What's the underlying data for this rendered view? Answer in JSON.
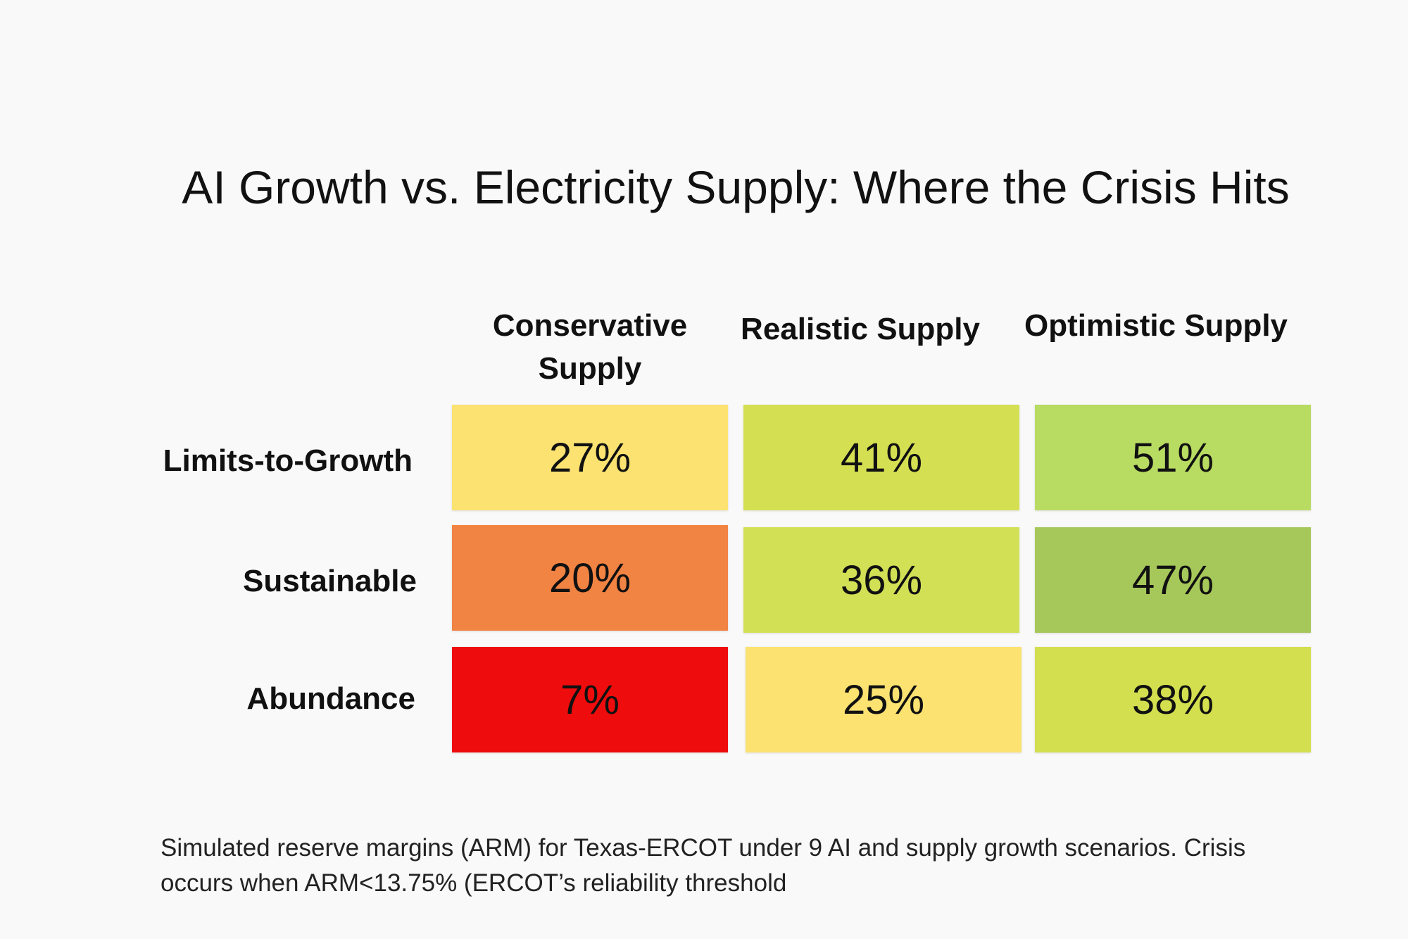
{
  "chart_data": {
    "type": "heatmap",
    "title": "AI Growth vs. Electricity Supply: Where the Crisis Hits",
    "columns": [
      "Conservative Supply",
      "Realistic Supply",
      "Optimistic Supply"
    ],
    "rows": [
      "Limits-to-Growth",
      "Sustainable",
      "Abundance"
    ],
    "values": [
      [
        27,
        41,
        51
      ],
      [
        20,
        36,
        47
      ],
      [
        7,
        25,
        38
      ]
    ],
    "labels": [
      [
        "27%",
        "41%",
        "51%"
      ],
      [
        "20%",
        "36%",
        "47%"
      ],
      [
        "7%",
        "25%",
        "38%"
      ]
    ],
    "colors": [
      [
        "#fbe271",
        "#d5df52",
        "#b8db62"
      ],
      [
        "#f18343",
        "#d2e056",
        "#a6c85a"
      ],
      [
        "#ee0c0c",
        "#fbe271",
        "#d3df4f"
      ]
    ],
    "caption_lines": [
      "Simulated reserve margins (ARM) for Texas-ERCOT under 9 AI and supply growth scenarios. Crisis",
      "occurs when ARM<13.75% (ERCOT’s reliability threshold"
    ]
  }
}
